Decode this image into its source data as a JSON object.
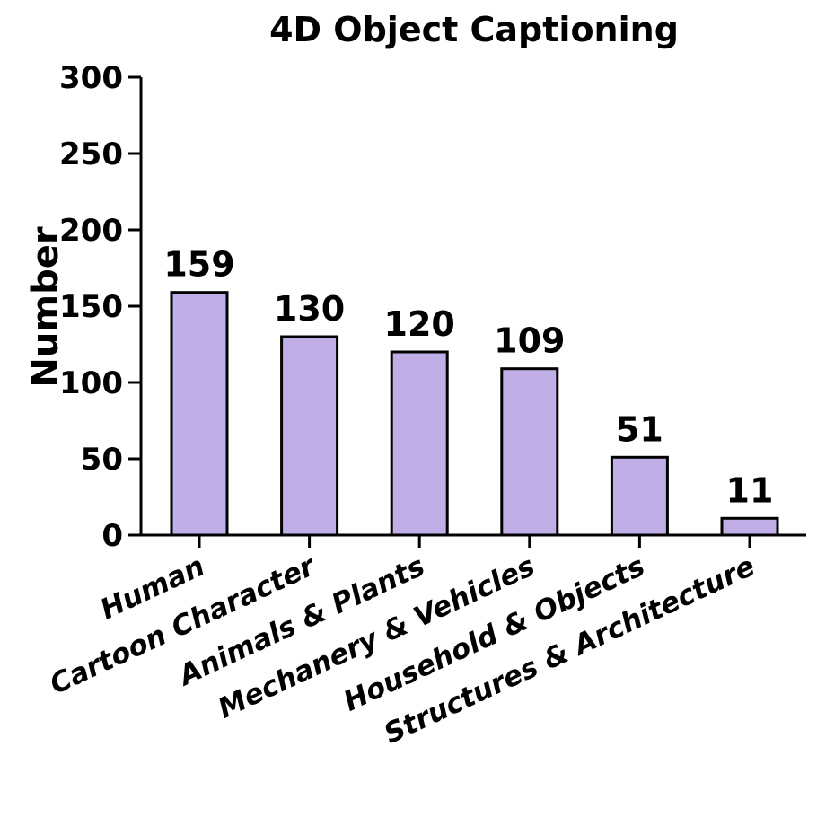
{
  "chart_data": {
    "type": "bar",
    "title": "4D Object Captioning",
    "ylabel": "Number",
    "xlabel": "",
    "categories": [
      "Human",
      "Cartoon Character",
      "Animals & Plants",
      "Mechanery & Vehicles",
      "Household & Objects",
      "Structures & Architecture"
    ],
    "values": [
      159,
      130,
      120,
      109,
      51,
      11
    ],
    "ylim": [
      0,
      300
    ],
    "yticks": [
      0,
      50,
      100,
      150,
      200,
      250,
      300
    ],
    "bar_color": "#c0aee6",
    "grid": false,
    "legend": "none"
  }
}
